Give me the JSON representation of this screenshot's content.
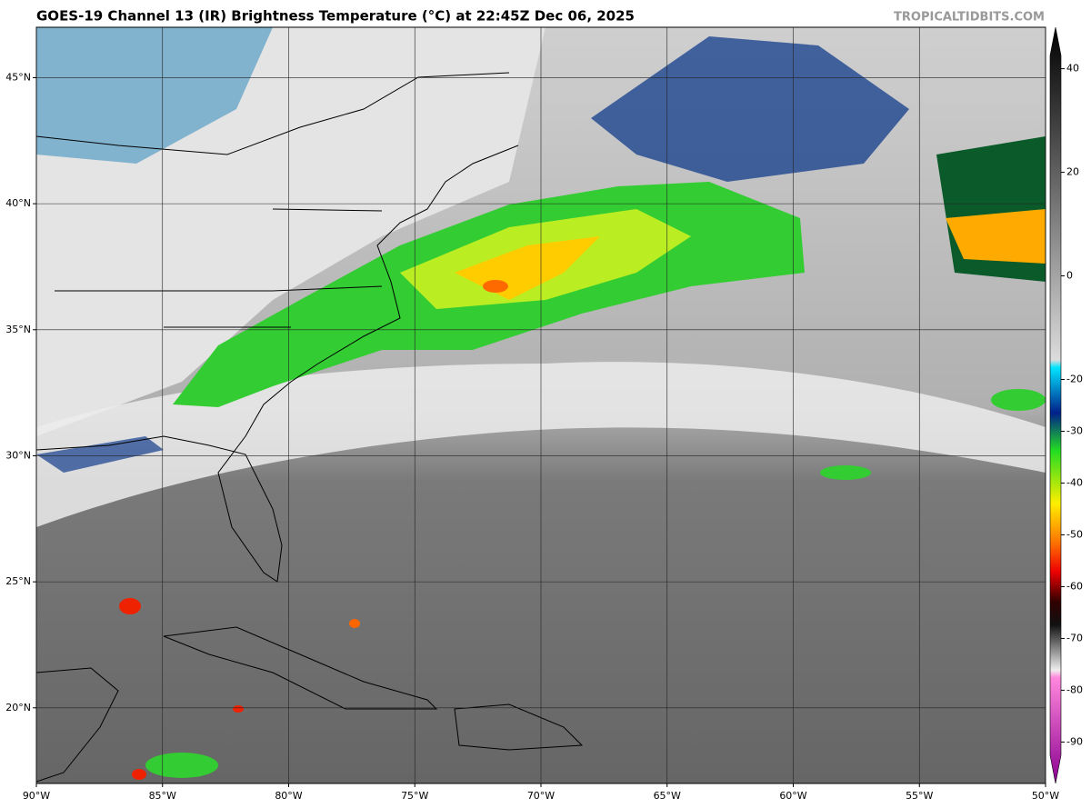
{
  "header": {
    "title": "GOES-19 Channel 13 (IR) Brightness Temperature (°C) at 22:45Z Dec 06, 2025",
    "credit": "TROPICALTIDBITS.COM"
  },
  "map": {
    "xlim": [
      -90,
      -50
    ],
    "ylim": [
      17,
      47
    ],
    "xticks": [
      {
        "value": -90,
        "label": "90°W"
      },
      {
        "value": -85,
        "label": "85°W"
      },
      {
        "value": -80,
        "label": "80°W"
      },
      {
        "value": -75,
        "label": "75°W"
      },
      {
        "value": -70,
        "label": "70°W"
      },
      {
        "value": -65,
        "label": "65°W"
      },
      {
        "value": -60,
        "label": "60°W"
      },
      {
        "value": -55,
        "label": "55°W"
      },
      {
        "value": -50,
        "label": "50°W"
      }
    ],
    "yticks": [
      {
        "value": 20,
        "label": "20°N"
      },
      {
        "value": 25,
        "label": "25°N"
      },
      {
        "value": 30,
        "label": "30°N"
      },
      {
        "value": 35,
        "label": "35°N"
      },
      {
        "value": 40,
        "label": "40°N"
      },
      {
        "value": 45,
        "label": "45°N"
      }
    ],
    "grid": true
  },
  "colorbar": {
    "lim": [
      -98,
      48
    ],
    "ticks": [
      40,
      20,
      0,
      -20,
      -30,
      -40,
      -50,
      -60,
      -70,
      -80,
      -90
    ]
  }
}
